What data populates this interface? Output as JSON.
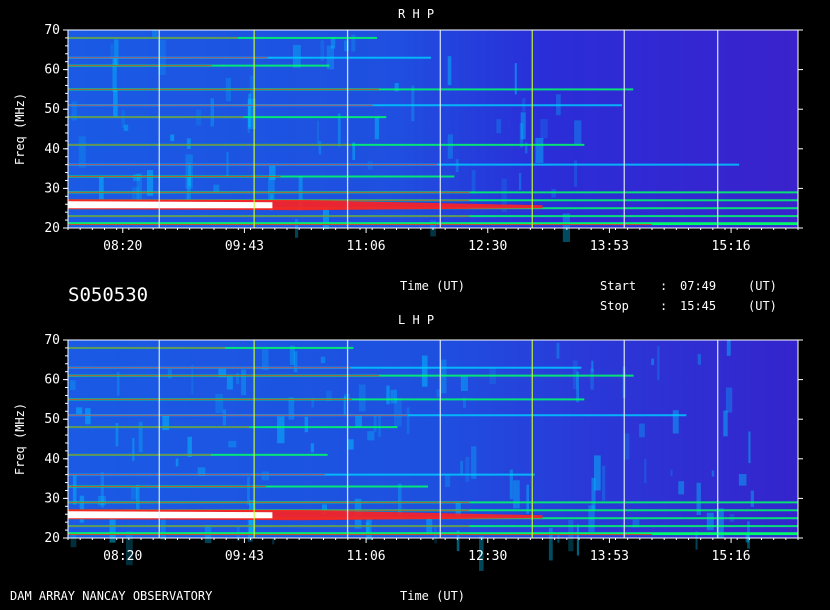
{
  "header": {
    "observation_id": "S050530",
    "time_label": "Time (UT)",
    "start_label": "Start",
    "stop_label": "Stop",
    "colon": ":",
    "start_time": "07:49",
    "stop_time": "15:45",
    "unit": "(UT)"
  },
  "footer": {
    "observatory": "DAM ARRAY  NANCAY OBSERVATORY",
    "time_label": "Time (UT)"
  },
  "chart_data": [
    {
      "type": "heatmap",
      "title": "R H P",
      "ylabel": "Freq (MHz)",
      "xlabel": "Time (UT)",
      "ylim": [
        20,
        70
      ],
      "yticks": [
        "20",
        "30",
        "40",
        "50",
        "60",
        "70"
      ],
      "xticks": [
        "08:20",
        "09:43",
        "11:06",
        "12:30",
        "13:53",
        "15:16"
      ],
      "colors": [
        "#2a1ed8",
        "#1c5ae6",
        "#00c8ff",
        "#00ff66",
        "#ff2020",
        "#ffffff"
      ],
      "emission_bands_mhz": [
        21,
        23,
        25,
        27,
        29,
        33,
        36,
        41,
        48,
        51,
        55,
        61,
        63,
        68
      ]
    },
    {
      "type": "heatmap",
      "title": "L H P",
      "ylabel": "Freq (MHz)",
      "xlabel": "",
      "ylim": [
        20,
        70
      ],
      "yticks": [
        "20",
        "30",
        "40",
        "50",
        "60",
        "70"
      ],
      "xticks": [
        "08:20",
        "09:43",
        "11:06",
        "12:30",
        "13:53",
        "15:16"
      ],
      "colors": [
        "#2a1ed8",
        "#1c5ae6",
        "#00c8ff",
        "#00ff66",
        "#ff2020",
        "#ffffff"
      ],
      "emission_bands_mhz": [
        21,
        23,
        25,
        27,
        29,
        33,
        36,
        41,
        48,
        51,
        55,
        61,
        63,
        68
      ]
    }
  ]
}
